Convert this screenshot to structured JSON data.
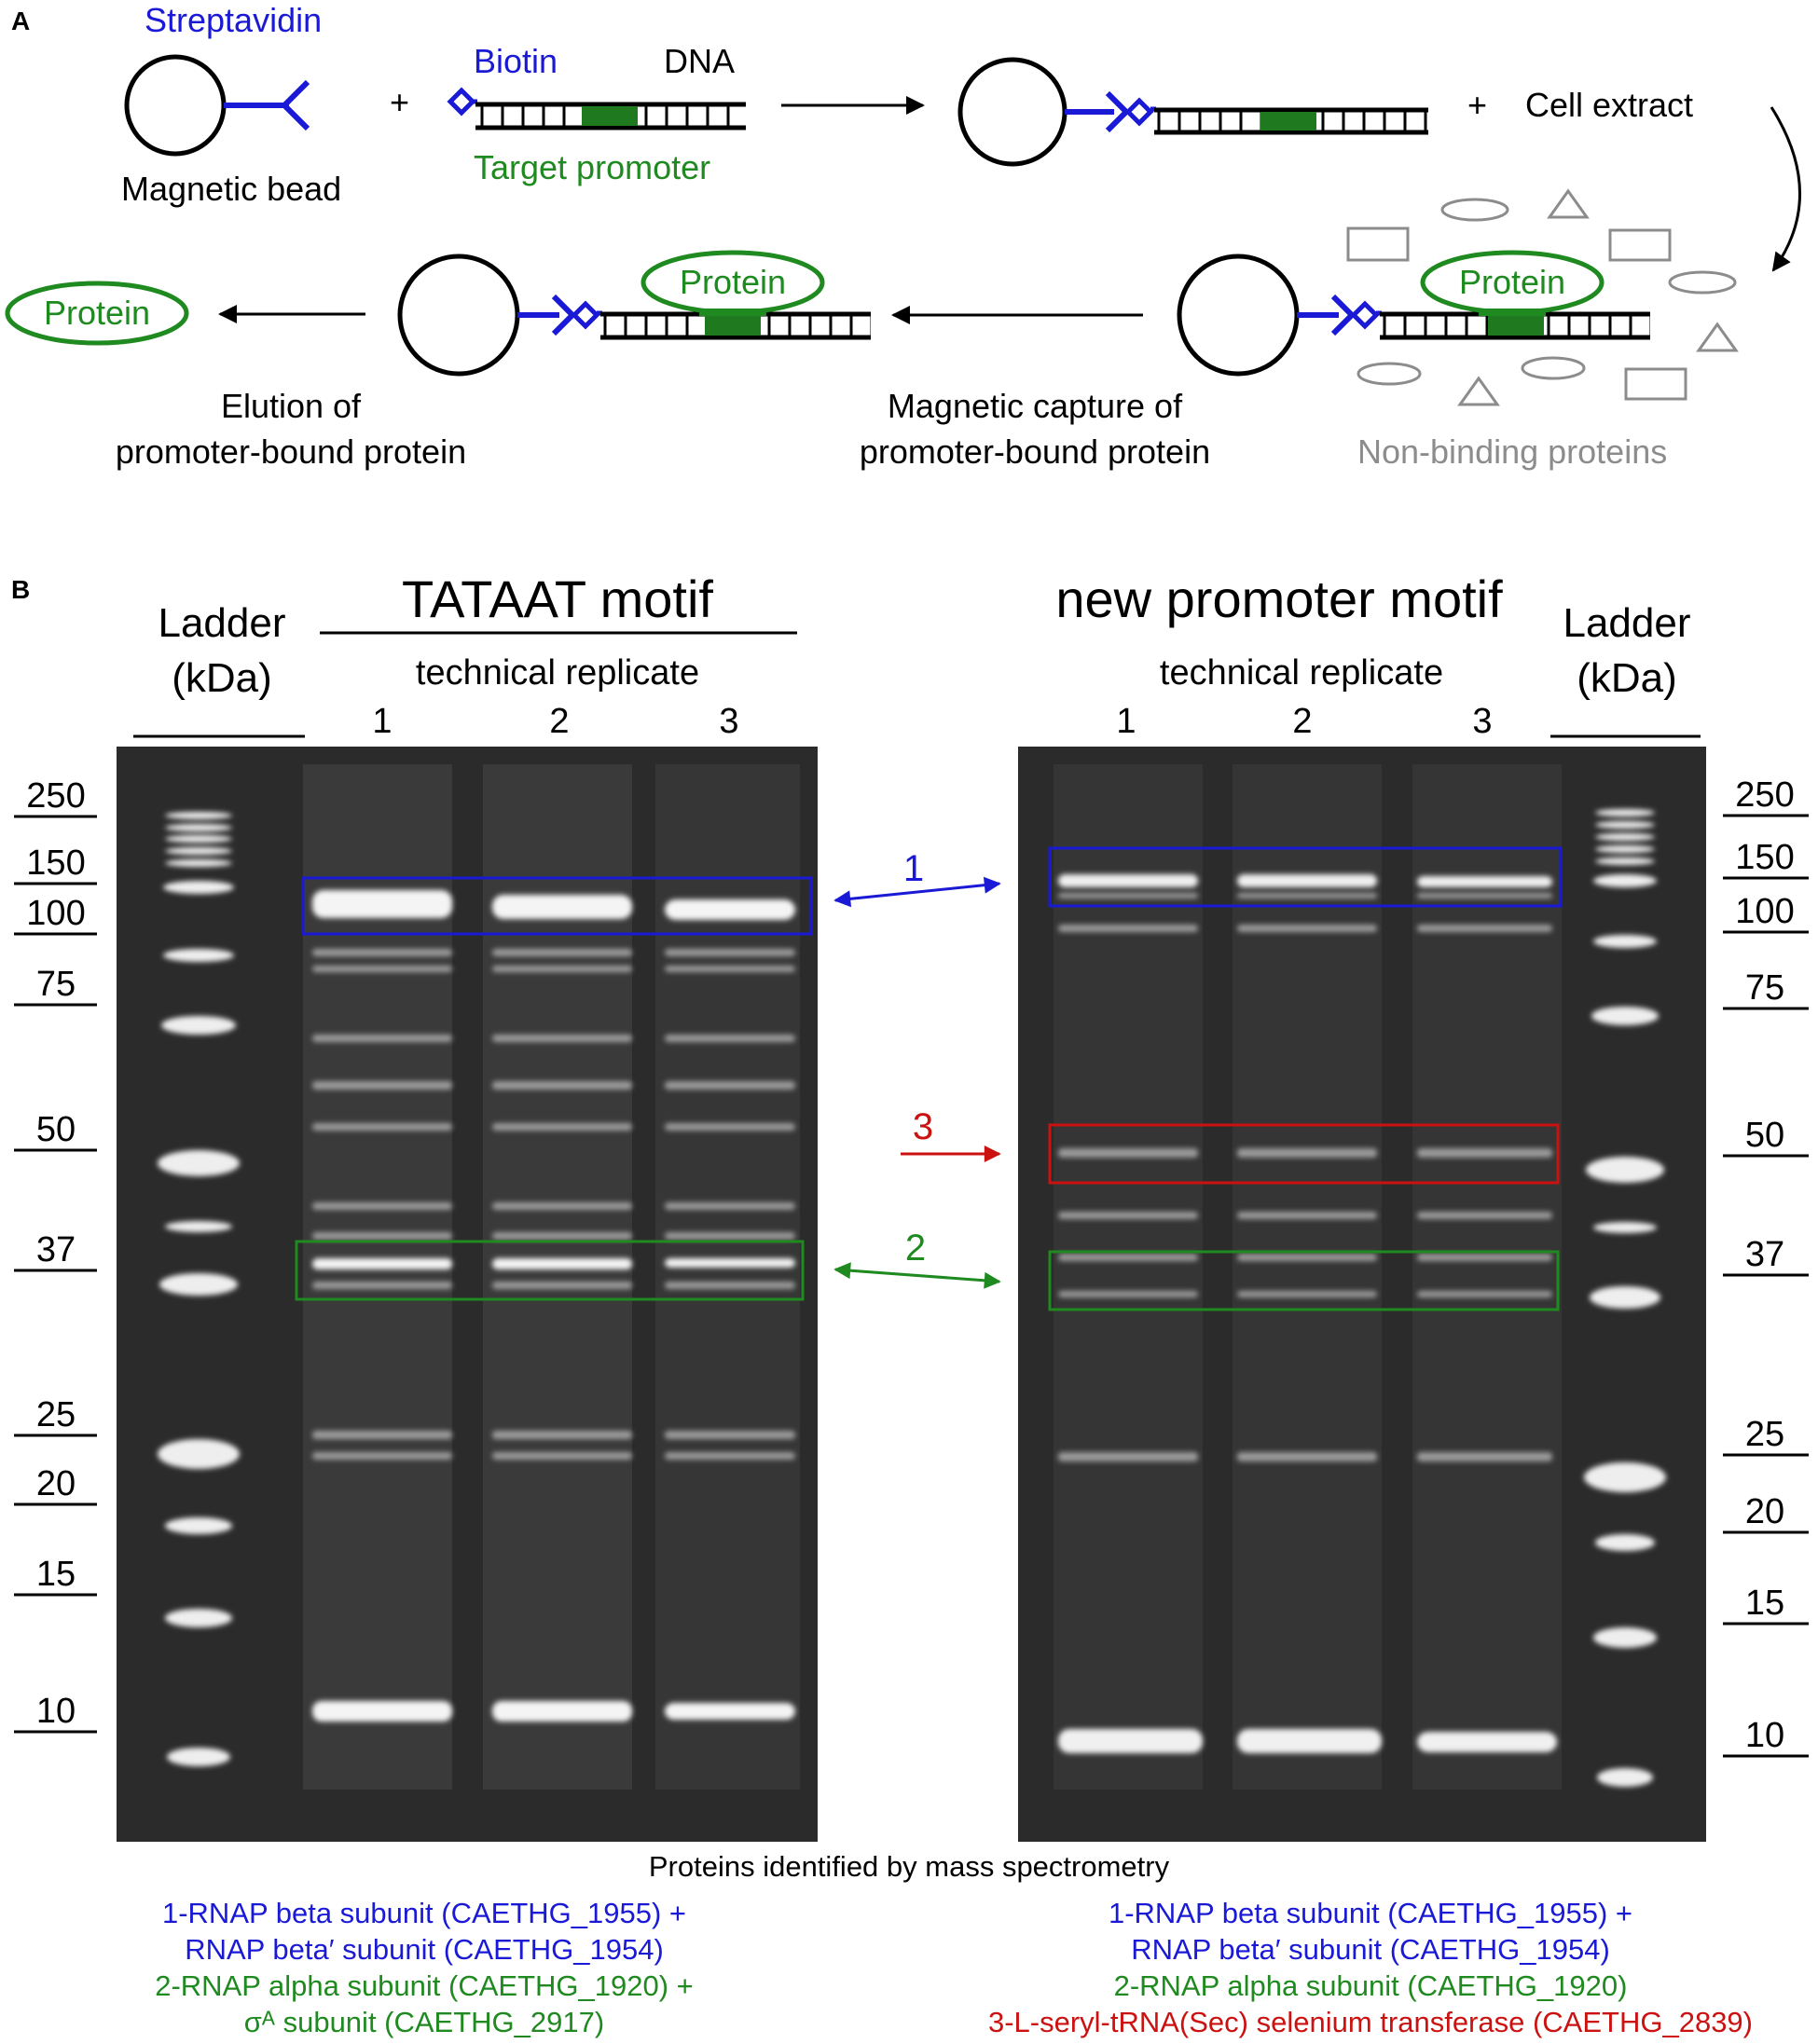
{
  "panel_a": {
    "label": "A",
    "streptavidin": "Streptavidin",
    "magnetic_bead": "Magnetic bead",
    "plus": "+",
    "biotin": "Biotin",
    "dna": "DNA",
    "target_promoter": "Target promoter",
    "cell_extract": "Cell extract",
    "protein": "Protein",
    "non_binding": "Non-binding proteins",
    "capture_line1": "Magnetic capture of",
    "capture_line2": "promoter-bound protein",
    "elution_line1": "Elution of",
    "elution_line2": "promoter-bound protein"
  },
  "panel_b": {
    "label": "B",
    "ladder_line1": "Ladder",
    "ladder_line2": "(kDa)",
    "left_gel_title": "TATAAT motif",
    "right_gel_title": "new promoter motif",
    "replicate_label": "technical replicate",
    "lanes": [
      "1",
      "2",
      "3"
    ],
    "left_markers": [
      "250",
      "150",
      "100",
      "75",
      "50",
      "37",
      "25",
      "20",
      "15",
      "10"
    ],
    "right_markers": [
      "250",
      "150",
      "100",
      "75",
      "50",
      "37",
      "25",
      "20",
      "15",
      "10"
    ],
    "arrow_labels": [
      "1",
      "3",
      "2"
    ],
    "colors": {
      "blue": "#1a1ad6",
      "green": "#1f8a1f",
      "red": "#cc1111",
      "gray": "#8c8c8c"
    }
  },
  "legend": {
    "title": "Proteins identified by mass spectrometry",
    "left": [
      "1-RNAP beta subunit (CAETHG_1955) +",
      "RNAP beta′ subunit (CAETHG_1954)",
      "2-RNAP alpha subunit (CAETHG_1920) +",
      "σᴬ subunit (CAETHG_2917)"
    ],
    "right": [
      "1-RNAP beta subunit (CAETHG_1955) +",
      "RNAP beta′ subunit (CAETHG_1954)",
      "2-RNAP alpha subunit (CAETHG_1920)",
      "3-L-seryl-tRNA(Sec) selenium transferase (CAETHG_2839)"
    ]
  }
}
